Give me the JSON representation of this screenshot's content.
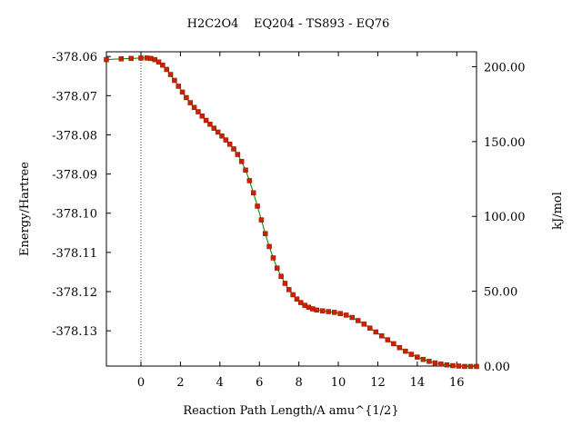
{
  "chart_data": {
    "type": "line",
    "title": "H2C2O4    EQ204 - TS893 - EQ76",
    "xlabel": "Reaction Path Length/A amu^{1/2}",
    "ylabel": "Energy/Hartree",
    "y2label": "kJ/mol",
    "xlim": [
      -1.75,
      17.0
    ],
    "ylim": [
      -378.139,
      -378.0588
    ],
    "y2lim": [
      0.0,
      210.0
    ],
    "x_ticks": [
      0,
      2,
      4,
      6,
      8,
      10,
      12,
      14,
      16
    ],
    "x_tick_labels": [
      "0",
      "2",
      "4",
      "6",
      "8",
      "10",
      "12",
      "14",
      "16"
    ],
    "y_ticks": [
      -378.06,
      -378.07,
      -378.08,
      -378.09,
      -378.1,
      -378.11,
      -378.12,
      -378.13
    ],
    "y_tick_labels": [
      "-378.06",
      "-378.07",
      "-378.08",
      "-378.09",
      "-378.10",
      "-378.11",
      "-378.12",
      "-378.13"
    ],
    "y2_ticks": [
      0,
      50,
      100,
      150,
      200
    ],
    "y2_tick_labels": [
      "0.00",
      "50.00",
      "100.00",
      "150.00",
      "200.00"
    ],
    "ts_marker_x": 0,
    "line_color": "#008000",
    "marker_color": "#cc2200",
    "grid": false,
    "series": [
      {
        "x": [
          -1.75,
          -1.0,
          -0.5,
          0.0,
          0.3,
          0.5,
          0.7,
          0.9,
          1.1,
          1.3,
          1.5,
          1.7,
          1.9,
          2.1,
          2.3,
          2.5,
          2.7,
          2.9,
          3.1,
          3.3,
          3.5,
          3.7,
          3.9,
          4.1,
          4.3,
          4.5,
          4.7,
          4.9,
          5.1,
          5.3,
          5.5,
          5.7,
          5.9,
          6.1,
          6.3,
          6.5,
          6.7,
          6.9,
          7.1,
          7.3,
          7.5,
          7.7,
          7.9,
          8.1,
          8.3,
          8.5,
          8.7,
          8.9,
          9.2,
          9.5,
          9.8,
          10.1,
          10.4,
          10.7,
          11.0,
          11.3,
          11.6,
          11.9,
          12.2,
          12.5,
          12.8,
          13.1,
          13.4,
          13.7,
          14.0,
          14.3,
          14.6,
          14.9,
          15.2,
          15.5,
          15.8,
          16.1,
          16.4,
          16.7,
          17.0
        ],
        "y": [
          -378.0608,
          -378.0606,
          -378.0605,
          -378.0604,
          -378.0604,
          -378.0605,
          -378.0608,
          -378.0614,
          -378.0622,
          -378.0633,
          -378.0646,
          -378.0661,
          -378.0676,
          -378.0691,
          -378.0705,
          -378.0718,
          -378.073,
          -378.0741,
          -378.0752,
          -378.0763,
          -378.0773,
          -378.0783,
          -378.0793,
          -378.0803,
          -378.0813,
          -378.0824,
          -378.0836,
          -378.085,
          -378.0868,
          -378.089,
          -378.0917,
          -378.0948,
          -378.0982,
          -378.1017,
          -378.1052,
          -378.1085,
          -378.1114,
          -378.114,
          -378.1161,
          -378.1179,
          -378.1195,
          -378.1208,
          -378.1219,
          -378.1228,
          -378.1235,
          -378.124,
          -378.1244,
          -378.1247,
          -378.1249,
          -378.1251,
          -378.1253,
          -378.1256,
          -378.126,
          -378.1266,
          -378.1274,
          -378.1283,
          -378.1293,
          -378.1303,
          -378.1313,
          -378.1323,
          -378.1333,
          -378.1343,
          -378.1352,
          -378.136,
          -378.1367,
          -378.1373,
          -378.1378,
          -378.1382,
          -378.1385,
          -378.1387,
          -378.1389,
          -378.139,
          -378.1391,
          -378.1391,
          -378.1391
        ]
      }
    ]
  }
}
